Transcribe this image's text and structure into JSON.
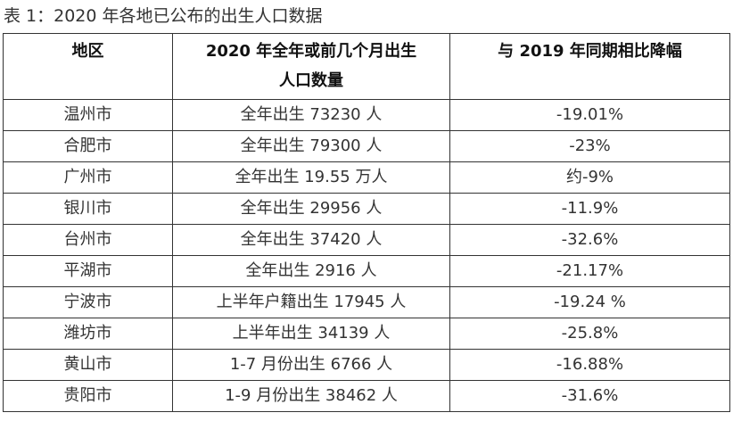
{
  "caption": "表 1：2020 年各地已公布的出生人口数据",
  "table": {
    "headers": [
      "地区",
      "2020 年全年或前几个月出生人口数量",
      "与 2019 年同期相比降幅"
    ],
    "rows": [
      [
        "温州市",
        "全年出生 73230 人",
        "-19.01%"
      ],
      [
        "合肥市",
        "全年出生 79300 人",
        "-23%"
      ],
      [
        "广州市",
        "全年出生 19.55 万人",
        "约-9%"
      ],
      [
        "银川市",
        "全年出生 29956 人",
        "-11.9%"
      ],
      [
        "台州市",
        "全年出生 37420 人",
        "-32.6%"
      ],
      [
        "平湖市",
        "全年出生 2916 人",
        "-21.17%"
      ],
      [
        "宁波市",
        "上半年户籍出生 17945 人",
        "-19.24 %"
      ],
      [
        "潍坊市",
        "上半年出生 34139 人",
        "-25.8%"
      ],
      [
        "黄山市",
        "1-7 月份出生 6766 人",
        "-16.88%"
      ],
      [
        "贵阳市",
        "1-9 月份出生 38462 人",
        "-31.6%"
      ]
    ]
  }
}
